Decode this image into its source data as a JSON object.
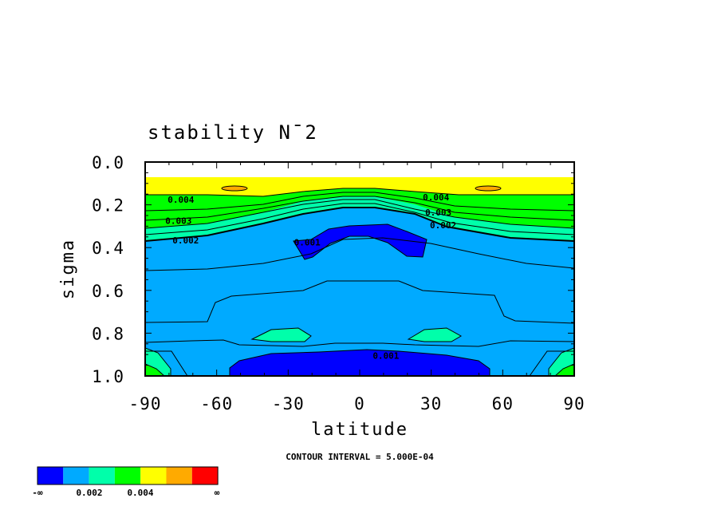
{
  "chart_data": {
    "type": "contour",
    "title": "stability N¯2",
    "xlabel": "latitude",
    "ylabel": "sigma",
    "xlim": [
      -90,
      90
    ],
    "ylim": [
      1.0,
      0.0
    ],
    "x_ticks": [
      "-90",
      "-60",
      "-30",
      "0",
      "30",
      "60",
      "90"
    ],
    "y_ticks": [
      "0.0",
      "0.2",
      "0.4",
      "0.6",
      "0.8",
      "1.0"
    ],
    "contour_interval_note": "CONTOUR INTERVAL = 5.000E-04",
    "contour_labels": [
      {
        "text": "0.004",
        "lat": -75,
        "sigma": 0.19
      },
      {
        "text": "0.003",
        "lat": -76,
        "sigma": 0.29
      },
      {
        "text": "0.002",
        "lat": -73,
        "sigma": 0.38
      },
      {
        "text": "0.001",
        "lat": -22,
        "sigma": 0.39
      },
      {
        "text": "0.004",
        "lat": 32,
        "sigma": 0.18
      },
      {
        "text": "0.003",
        "lat": 33,
        "sigma": 0.25
      },
      {
        "text": "0.002",
        "lat": 35,
        "sigma": 0.31
      },
      {
        "text": "0.001",
        "lat": 11,
        "sigma": 0.92
      }
    ],
    "colorbar": {
      "colors": [
        "#0000ff",
        "#00aaff",
        "#00ffaa",
        "#00ff00",
        "#ffff00",
        "#ffaa00",
        "#ff0000"
      ],
      "labels": [
        "-∞",
        "0.002",
        "0.004",
        "∞"
      ]
    }
  }
}
